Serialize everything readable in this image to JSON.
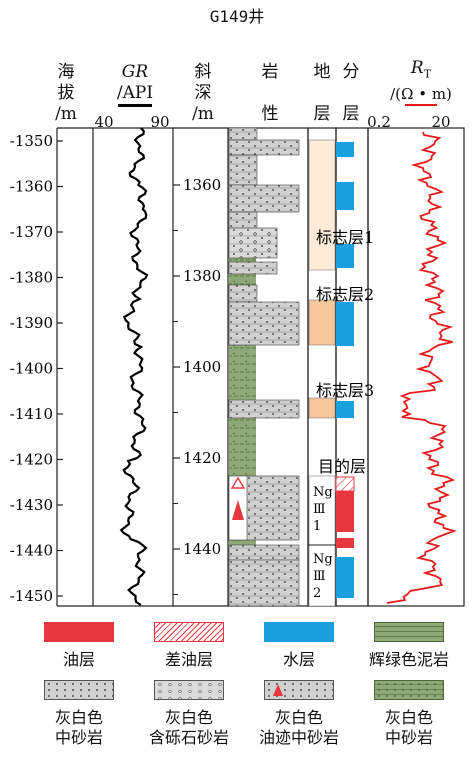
{
  "title": "G149井",
  "headers": {
    "elev": [
      "海",
      "拔",
      "/m"
    ],
    "gr": {
      "name": "GR",
      "unit": "/API",
      "min": "40",
      "max": "90"
    },
    "depth": [
      "斜",
      "深",
      "/m"
    ],
    "lith": [
      "岩",
      "性"
    ],
    "strat": [
      "地",
      "层"
    ],
    "layer": [
      "分",
      "层"
    ],
    "rt": {
      "name": "R",
      "sub": "T",
      "unit": "/(Ω • m)",
      "min": "0.2",
      "max": "20"
    }
  },
  "elevation_ticks": [
    "-1350",
    "-1360",
    "-1370",
    "-1380",
    "-1390",
    "-1400",
    "-1410",
    "-1420",
    "-1430",
    "-1440",
    "-1450"
  ],
  "depth_ticks": [
    "1360",
    "1380",
    "1400",
    "1420",
    "1440"
  ],
  "strat_labels": [
    "标志层1",
    "标志层2",
    "标志层3",
    "目的层"
  ],
  "zone_labels": [
    "Ng\nⅢ\n1",
    "Ng\nⅢ\n2"
  ],
  "colors": {
    "oil": "#e8383f",
    "poor_oil": "#f4a3a3",
    "water": "#1a9fdf",
    "mudstone": "#8fa878",
    "marker_light": "#fdebd8",
    "marker_dark": "#f6c89b",
    "gr_curve": "#000000",
    "rt_curve": "#e51a1a"
  },
  "legend": [
    {
      "label": "油层",
      "type": "oil"
    },
    {
      "label": "差油层",
      "type": "poor_oil"
    },
    {
      "label": "水层",
      "type": "water"
    },
    {
      "label": "辉绿色泥岩",
      "type": "green_mudstone"
    },
    {
      "label": "灰白色\n中砂岩",
      "type": "gray_sandstone"
    },
    {
      "label": "灰白色\n含砾石砂岩",
      "type": "pebbly_sandstone"
    },
    {
      "label": "灰白色\n油迹中砂岩",
      "type": "oil_trace_sandstone"
    },
    {
      "label": "灰白色\n中砂岩",
      "type": "green_sandstone"
    }
  ]
}
